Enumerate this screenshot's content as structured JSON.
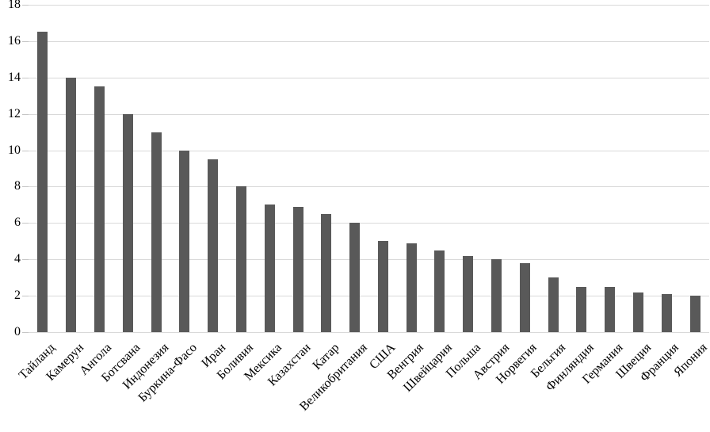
{
  "chart_data": {
    "type": "bar",
    "title": "",
    "xlabel": "",
    "ylabel": "",
    "legend": "none",
    "grid": true,
    "ylim": [
      0,
      18
    ],
    "ytick_step": 2,
    "ytick_labels": [
      "0",
      "2",
      "4",
      "6",
      "8",
      "10",
      "12",
      "14",
      "16",
      "18"
    ],
    "categories": [
      "Тайланд",
      "Камерун",
      "Ангола",
      "Ботсвана",
      "Индонезия",
      "Буркина-Фасо",
      "Иран",
      "Боливия",
      "Мексика",
      "Казахстан",
      "Катар",
      "Великобритания",
      "США",
      "Венгрия",
      "Швейцария",
      "Польша",
      "Австрия",
      "Норвегия",
      "Бельгия",
      "Финляндия",
      "Германия",
      "Швеция",
      "Франция",
      "Япония"
    ],
    "values": [
      16.5,
      14,
      13.5,
      12,
      11,
      10,
      9.5,
      8,
      7,
      6.9,
      6.5,
      6,
      5,
      4.9,
      4.5,
      4.2,
      4,
      3.8,
      3,
      2.5,
      2.5,
      2.2,
      2.1,
      2
    ],
    "colors": {
      "bar": "#595959",
      "gridline": "#d9d9d9",
      "tick": "#c6c6c6",
      "text": "#000000",
      "background": "#ffffff"
    }
  }
}
